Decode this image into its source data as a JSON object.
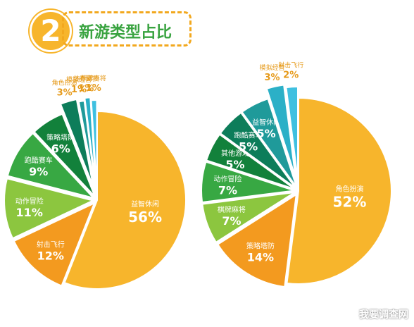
{
  "title": {
    "number": "2",
    "text": "新游类型占比"
  },
  "chart_data": [
    {
      "type": "pie",
      "slices": [
        {
          "label": "益智休闲",
          "value": 56,
          "value_label": "56%",
          "color": "#f7b52c"
        },
        {
          "label": "射击飞行",
          "value": 12,
          "value_label": "12%",
          "color": "#f39a1f"
        },
        {
          "label": "动作冒险",
          "value": 11,
          "value_label": "11%",
          "color": "#8cc63f"
        },
        {
          "label": "跑酷赛车",
          "value": 9,
          "value_label": "9%",
          "color": "#38a843"
        },
        {
          "label": "策略塔防",
          "value": 6,
          "value_label": "6%",
          "color": "#12813b"
        },
        {
          "label": "角色扮演",
          "value": 3,
          "value_label": "3%",
          "color": "#0d7d5a"
        },
        {
          "label": "模拟经营",
          "value": 1,
          "value_label": "1%",
          "color": "#1f9a9a"
        },
        {
          "label": "体育竞技",
          "value": 1,
          "value_label": "1%",
          "color": "#2bb0c7"
        },
        {
          "label": "棋牌麻将",
          "value": 1,
          "value_label": "1%",
          "color": "#3fc0e0"
        }
      ]
    },
    {
      "type": "pie",
      "slices": [
        {
          "label": "角色扮演",
          "value": 52,
          "value_label": "52%",
          "color": "#f7b52c"
        },
        {
          "label": "策略塔防",
          "value": 14,
          "value_label": "14%",
          "color": "#f39a1f"
        },
        {
          "label": "棋牌麻将",
          "value": 7,
          "value_label": "7%",
          "color": "#8cc63f"
        },
        {
          "label": "动作冒险",
          "value": 7,
          "value_label": "7%",
          "color": "#38a843"
        },
        {
          "label": "其他游戏",
          "value": 5,
          "value_label": "5%",
          "color": "#12813b"
        },
        {
          "label": "跑酷赛车",
          "value": 5,
          "value_label": "5%",
          "color": "#0d7d5a"
        },
        {
          "label": "益智休闲",
          "value": 5,
          "value_label": "5%",
          "color": "#1f9a9a"
        },
        {
          "label": "模拟经营",
          "value": 3,
          "value_label": "3%",
          "color": "#2bb0c7"
        },
        {
          "label": "射击飞行",
          "value": 2,
          "value_label": "2%",
          "color": "#3fc0e0"
        }
      ]
    }
  ],
  "watermark": "我要调查网"
}
